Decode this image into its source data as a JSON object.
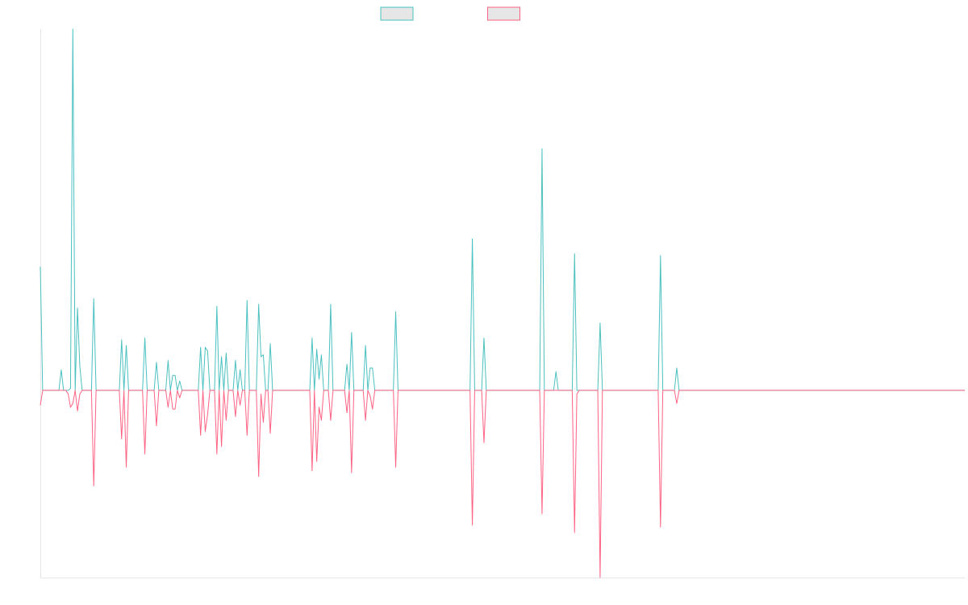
{
  "chart_data": {
    "type": "line",
    "title": "",
    "xlabel": "",
    "ylabel": "",
    "ylim": [
      -1.0,
      1.93
    ],
    "grid": false,
    "legend": "top-center",
    "baseline": 0,
    "series": [
      {
        "color": "#4bc0c0",
        "points": [
          [
            0,
            0.66
          ],
          [
            1,
            0
          ],
          [
            3,
            0
          ],
          [
            8,
            0
          ],
          [
            9,
            0.11
          ],
          [
            10,
            0
          ],
          [
            11,
            0
          ],
          [
            12,
            0
          ],
          [
            13,
            0.01
          ],
          [
            14,
            1.93
          ],
          [
            15,
            0
          ],
          [
            16,
            0.44
          ],
          [
            17,
            0.13
          ],
          [
            18,
            0
          ],
          [
            22,
            0
          ],
          [
            23,
            0.49
          ],
          [
            24,
            0
          ],
          [
            34,
            0
          ],
          [
            35,
            0.27
          ],
          [
            36,
            0
          ],
          [
            37,
            0.24
          ],
          [
            38,
            0
          ],
          [
            44,
            0
          ],
          [
            45,
            0.28
          ],
          [
            46,
            0
          ],
          [
            49,
            0
          ],
          [
            50,
            0.15
          ],
          [
            51,
            0
          ],
          [
            54,
            0
          ],
          [
            55,
            0.16
          ],
          [
            56,
            0
          ],
          [
            57,
            0.08
          ],
          [
            58,
            0.08
          ],
          [
            59,
            0
          ],
          [
            60,
            0.05
          ],
          [
            61,
            0
          ],
          [
            68,
            0
          ],
          [
            69,
            0.23
          ],
          [
            70,
            0
          ],
          [
            71,
            0.23
          ],
          [
            72,
            0.21
          ],
          [
            73,
            0
          ],
          [
            75,
            0
          ],
          [
            76,
            0.45
          ],
          [
            77,
            0
          ],
          [
            78,
            0.18
          ],
          [
            79,
            0
          ],
          [
            80,
            0.2
          ],
          [
            81,
            0
          ],
          [
            83,
            0
          ],
          [
            84,
            0.16
          ],
          [
            85,
            0
          ],
          [
            86,
            0.11
          ],
          [
            87,
            0
          ],
          [
            88,
            0
          ],
          [
            89,
            0.48
          ],
          [
            90,
            0
          ],
          [
            93,
            0
          ],
          [
            94,
            0.46
          ],
          [
            95,
            0.18
          ],
          [
            96,
            0.19
          ],
          [
            97,
            0
          ],
          [
            98,
            0
          ],
          [
            99,
            0.25
          ],
          [
            100,
            0
          ],
          [
            116,
            0
          ],
          [
            117,
            0.28
          ],
          [
            118,
            0
          ],
          [
            119,
            0.22
          ],
          [
            120,
            0.06
          ],
          [
            121,
            0.19
          ],
          [
            122,
            0
          ],
          [
            124,
            0
          ],
          [
            125,
            0.46
          ],
          [
            126,
            0
          ],
          [
            129,
            0
          ],
          [
            130,
            0
          ],
          [
            131,
            0
          ],
          [
            132,
            0.14
          ],
          [
            133,
            0
          ],
          [
            134,
            0.31
          ],
          [
            135,
            0
          ],
          [
            139,
            0
          ],
          [
            140,
            0.24
          ],
          [
            141,
            0
          ],
          [
            142,
            0.12
          ],
          [
            143,
            0.12
          ],
          [
            144,
            0
          ],
          [
            152,
            0
          ],
          [
            153,
            0.42
          ],
          [
            154,
            0
          ],
          [
            185,
            0
          ],
          [
            186,
            0.81
          ],
          [
            187,
            0
          ],
          [
            190,
            0
          ],
          [
            191,
            0.28
          ],
          [
            192,
            0
          ],
          [
            215,
            0
          ],
          [
            216,
            1.29
          ],
          [
            217,
            0
          ],
          [
            221,
            0
          ],
          [
            222,
            0.1
          ],
          [
            223,
            0
          ],
          [
            229,
            0
          ],
          [
            230,
            0.73
          ],
          [
            231,
            0
          ],
          [
            232,
            0
          ],
          [
            233,
            0
          ],
          [
            240,
            0
          ],
          [
            241,
            0.36
          ],
          [
            242,
            0
          ],
          [
            266,
            0
          ],
          [
            267,
            0.72
          ],
          [
            268,
            0
          ],
          [
            273,
            0
          ],
          [
            274,
            0.12
          ],
          [
            275,
            0
          ],
          [
            284,
            0
          ],
          [
            285,
            0
          ],
          [
            286,
            0
          ],
          [
            398,
            0
          ]
        ]
      },
      {
        "color": "#ff6384",
        "points": [
          [
            0,
            -0.08
          ],
          [
            1,
            0
          ],
          [
            3,
            0
          ],
          [
            8,
            0
          ],
          [
            9,
            0
          ],
          [
            10,
            0
          ],
          [
            11,
            0
          ],
          [
            12,
            -0.02
          ],
          [
            13,
            -0.09
          ],
          [
            14,
            -0.07
          ],
          [
            15,
            0
          ],
          [
            16,
            -0.11
          ],
          [
            17,
            -0.02
          ],
          [
            18,
            0
          ],
          [
            22,
            0
          ],
          [
            23,
            -0.51
          ],
          [
            24,
            0
          ],
          [
            34,
            0
          ],
          [
            35,
            -0.26
          ],
          [
            36,
            0
          ],
          [
            37,
            -0.41
          ],
          [
            38,
            0
          ],
          [
            44,
            0
          ],
          [
            45,
            -0.34
          ],
          [
            46,
            0
          ],
          [
            49,
            0
          ],
          [
            50,
            -0.19
          ],
          [
            51,
            0
          ],
          [
            54,
            0
          ],
          [
            55,
            -0.09
          ],
          [
            56,
            0
          ],
          [
            57,
            -0.1
          ],
          [
            58,
            -0.1
          ],
          [
            59,
            0
          ],
          [
            60,
            -0.04
          ],
          [
            61,
            0
          ],
          [
            68,
            0
          ],
          [
            69,
            -0.24
          ],
          [
            70,
            0
          ],
          [
            71,
            -0.22
          ],
          [
            72,
            -0.13
          ],
          [
            73,
            0
          ],
          [
            75,
            0
          ],
          [
            76,
            -0.34
          ],
          [
            77,
            0
          ],
          [
            78,
            -0.3
          ],
          [
            79,
            0
          ],
          [
            80,
            -0.16
          ],
          [
            81,
            0
          ],
          [
            83,
            0
          ],
          [
            84,
            -0.14
          ],
          [
            85,
            0
          ],
          [
            86,
            -0.08
          ],
          [
            87,
            0
          ],
          [
            88,
            0
          ],
          [
            89,
            -0.24
          ],
          [
            90,
            0
          ],
          [
            93,
            0
          ],
          [
            94,
            -0.46
          ],
          [
            95,
            -0.02
          ],
          [
            96,
            -0.17
          ],
          [
            97,
            0
          ],
          [
            98,
            0
          ],
          [
            99,
            -0.23
          ],
          [
            100,
            0
          ],
          [
            116,
            0
          ],
          [
            117,
            -0.43
          ],
          [
            118,
            0
          ],
          [
            119,
            -0.38
          ],
          [
            120,
            -0.09
          ],
          [
            121,
            -0.16
          ],
          [
            122,
            0
          ],
          [
            124,
            0
          ],
          [
            125,
            -0.16
          ],
          [
            126,
            0
          ],
          [
            129,
            0
          ],
          [
            130,
            0
          ],
          [
            131,
            0
          ],
          [
            132,
            -0.12
          ],
          [
            133,
            0
          ],
          [
            134,
            -0.44
          ],
          [
            135,
            0
          ],
          [
            139,
            0
          ],
          [
            140,
            -0.16
          ],
          [
            141,
            0
          ],
          [
            142,
            -0.03
          ],
          [
            143,
            -0.1
          ],
          [
            144,
            0
          ],
          [
            152,
            0
          ],
          [
            153,
            -0.41
          ],
          [
            154,
            0
          ],
          [
            185,
            0
          ],
          [
            186,
            -0.72
          ],
          [
            187,
            0
          ],
          [
            190,
            0
          ],
          [
            191,
            -0.28
          ],
          [
            192,
            0
          ],
          [
            215,
            0
          ],
          [
            216,
            -0.66
          ],
          [
            217,
            0
          ],
          [
            221,
            0
          ],
          [
            222,
            0
          ],
          [
            223,
            0
          ],
          [
            229,
            0
          ],
          [
            230,
            -0.76
          ],
          [
            231,
            -0.02
          ],
          [
            232,
            0
          ],
          [
            233,
            0
          ],
          [
            240,
            0
          ],
          [
            241,
            -1.0
          ],
          [
            242,
            0
          ],
          [
            266,
            0
          ],
          [
            267,
            -0.73
          ],
          [
            268,
            0
          ],
          [
            273,
            0
          ],
          [
            274,
            -0.07
          ],
          [
            275,
            0
          ],
          [
            284,
            0
          ],
          [
            285,
            0
          ],
          [
            286,
            0
          ],
          [
            398,
            0
          ]
        ]
      }
    ]
  }
}
